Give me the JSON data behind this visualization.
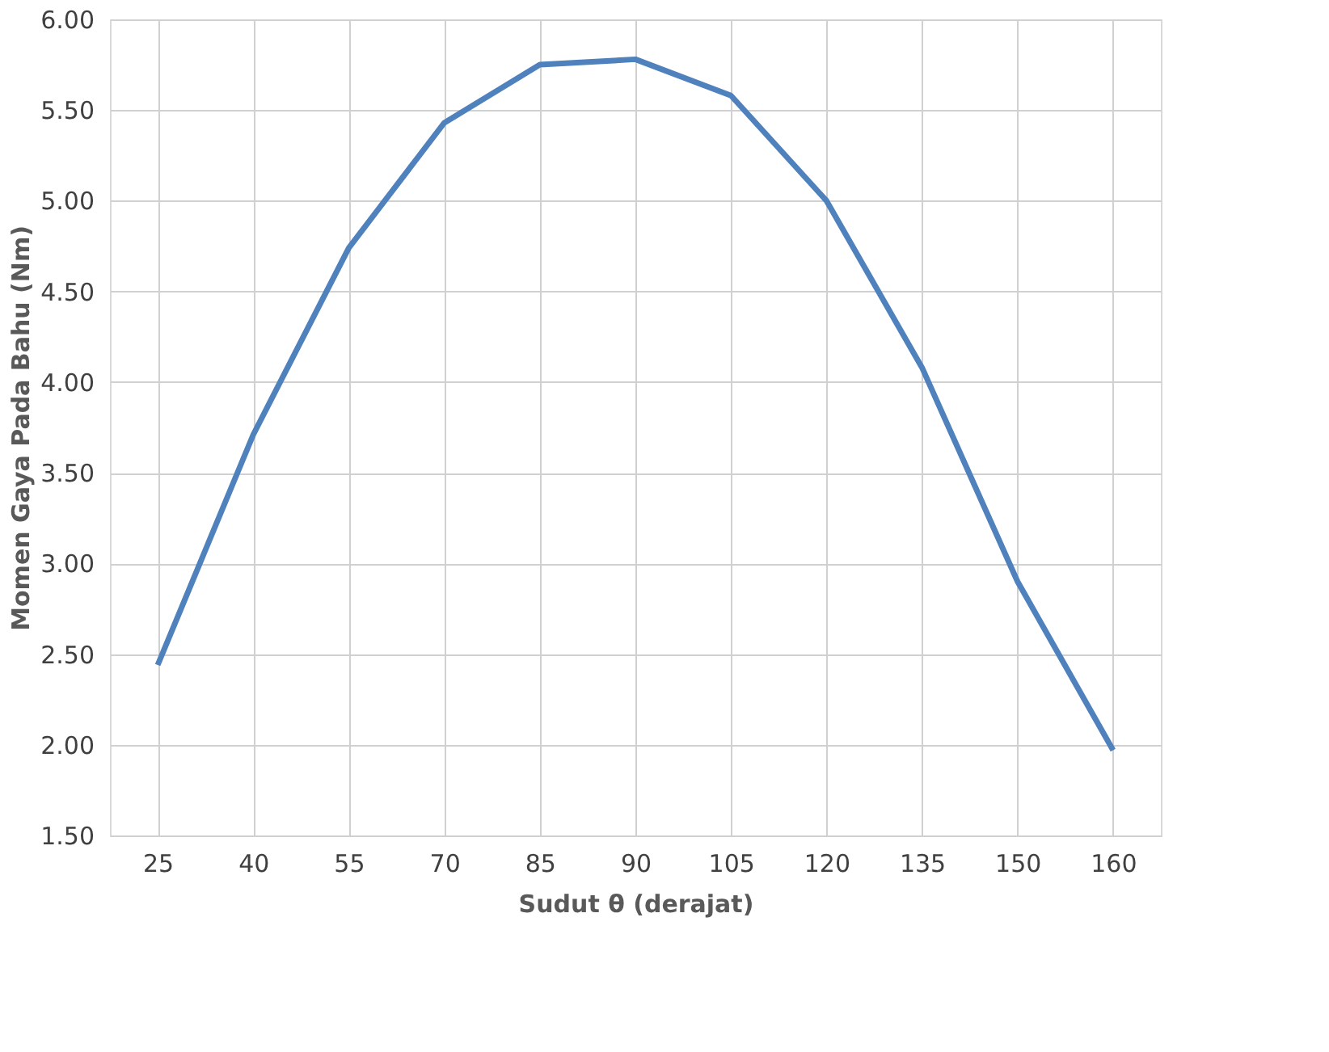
{
  "chart_data": {
    "type": "line",
    "xlabel": "Sudut θ (derajat)",
    "ylabel": "Momen Gaya Pada Bahu (Nm)",
    "categories": [
      "25",
      "40",
      "55",
      "70",
      "85",
      "90",
      "105",
      "120",
      "135",
      "150",
      "160"
    ],
    "series": [
      {
        "color": "#4f81bd",
        "values": [
          2.44,
          3.71,
          4.74,
          5.43,
          5.75,
          5.78,
          5.58,
          5.0,
          4.08,
          2.9,
          1.97
        ]
      }
    ],
    "ylim": [
      1.5,
      6.0
    ],
    "yticks": [
      {
        "value": 1.5,
        "label": "1.50"
      },
      {
        "value": 2.0,
        "label": "2.00"
      },
      {
        "value": 2.5,
        "label": "2.50"
      },
      {
        "value": 3.0,
        "label": "3.00"
      },
      {
        "value": 3.5,
        "label": "3.50"
      },
      {
        "value": 4.0,
        "label": "4.00"
      },
      {
        "value": 4.5,
        "label": "4.50"
      },
      {
        "value": 5.0,
        "label": "5.00"
      },
      {
        "value": 5.5,
        "label": "5.50"
      },
      {
        "value": 6.0,
        "label": "6.00"
      }
    ],
    "grid": true,
    "marker": "none",
    "line_style": "solid"
  }
}
